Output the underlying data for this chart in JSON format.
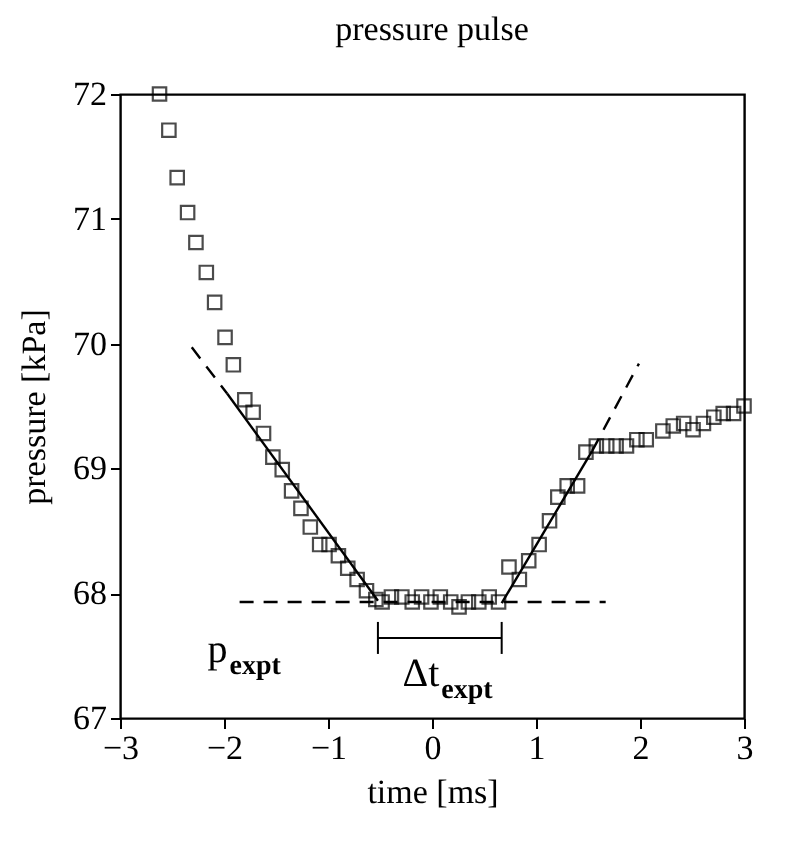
{
  "chart_data": {
    "type": "scatter",
    "title": "pressure pulse",
    "xlabel": "time [ms]",
    "ylabel": "pressure [kPa]",
    "xlim": [
      -3,
      3
    ],
    "ylim": [
      67,
      72
    ],
    "xticks": [
      -3,
      -2,
      -1,
      0,
      1,
      2,
      3
    ],
    "yticks": [
      67,
      68,
      69,
      70,
      71,
      72
    ],
    "marker": "square",
    "grid": false,
    "series": [
      {
        "color": "#000000",
        "x": [
          -2.62,
          -2.53,
          -2.45,
          -2.35,
          -2.27,
          -2.17,
          -2.09,
          -1.99,
          -1.91,
          -1.8,
          -1.72,
          -1.62,
          -1.53,
          -1.44,
          -1.35,
          -1.26,
          -1.17,
          -1.08,
          -0.99,
          -0.9,
          -0.81,
          -0.72,
          -0.63,
          -0.54,
          -0.48,
          -0.39,
          -0.29,
          -0.19,
          -0.1,
          -0.01,
          0.08,
          0.18,
          0.26,
          0.35,
          0.45,
          0.55,
          0.64,
          0.74,
          0.84,
          0.93,
          1.03,
          1.13,
          1.21,
          1.3,
          1.4,
          1.48,
          1.58,
          1.68,
          1.77,
          1.87,
          1.97,
          2.06,
          2.22,
          2.32,
          2.42,
          2.51,
          2.61,
          2.71,
          2.8,
          2.9,
          3.0
        ],
        "values": [
          72.0,
          71.71,
          71.33,
          71.05,
          70.81,
          70.57,
          70.33,
          70.05,
          69.83,
          69.55,
          69.45,
          69.28,
          69.09,
          68.99,
          68.82,
          68.68,
          68.53,
          68.39,
          68.39,
          68.3,
          68.2,
          68.11,
          68.02,
          67.95,
          67.93,
          67.97,
          67.97,
          67.93,
          67.97,
          67.93,
          67.97,
          67.93,
          67.89,
          67.93,
          67.93,
          67.97,
          67.93,
          68.21,
          68.11,
          68.26,
          68.39,
          68.58,
          68.77,
          68.86,
          68.86,
          69.13,
          69.18,
          69.18,
          69.18,
          69.18,
          69.23,
          69.23,
          69.3,
          69.34,
          69.36,
          69.31,
          69.36,
          69.41,
          69.44,
          69.44,
          69.5
        ]
      },
      {
        "type": "line",
        "marker": "none",
        "color": "#000000",
        "line_style": "dashed",
        "x": [
          -2.31,
          -1.97
        ],
        "values": [
          69.97,
          69.6
        ]
      },
      {
        "type": "line",
        "marker": "none",
        "color": "#000000",
        "line_style": "solid",
        "x": [
          -1.97,
          -0.52
        ],
        "values": [
          69.6,
          67.94
        ]
      },
      {
        "type": "line",
        "marker": "none",
        "color": "#000000",
        "line_style": "solid",
        "x": [
          0.67,
          1.54
        ],
        "values": [
          67.92,
          69.14
        ]
      },
      {
        "type": "line",
        "marker": "none",
        "color": "#000000",
        "line_style": "dashed",
        "x": [
          1.54,
          1.99
        ],
        "values": [
          69.14,
          69.84
        ]
      },
      {
        "type": "line",
        "marker": "none",
        "color": "#000000",
        "line_style": "dashed",
        "x": [
          -1.85,
          1.67
        ],
        "values": [
          67.93,
          67.93
        ]
      }
    ],
    "annotations": [
      {
        "text": "p$_{expt}$",
        "x": -1.85,
        "y": 67.93
      },
      {
        "text": "Δt$_{expt}$",
        "x": 0.07,
        "y": 67.93
      }
    ]
  }
}
